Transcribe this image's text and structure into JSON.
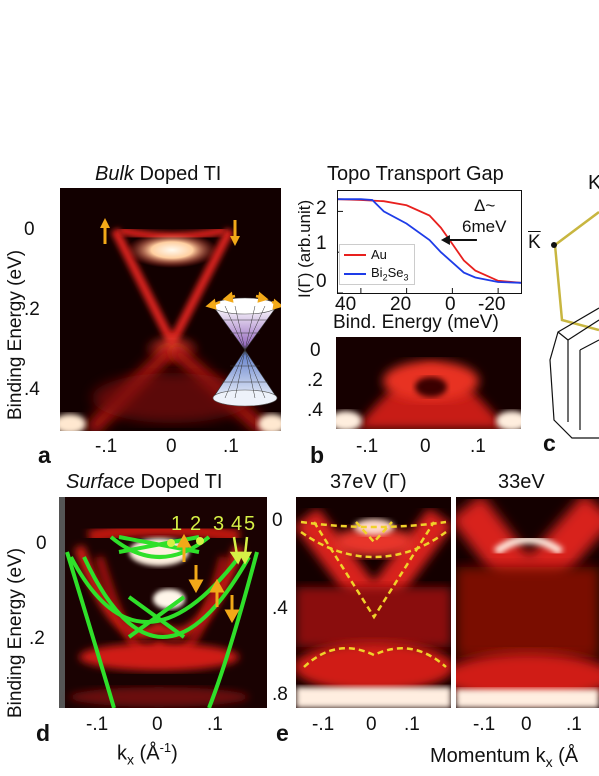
{
  "panel_a": {
    "title_em": "Bulk",
    "title_rest": " Doped TI",
    "ylabel": "Binding Energy (eV)",
    "yticks": [
      "0",
      ".2",
      ".4"
    ],
    "xticks": [
      "-.1",
      "0",
      ".1"
    ],
    "letter": "a"
  },
  "panel_b": {
    "title": "Topo Transport Gap",
    "ylabel": "I(Γ) (arb.unit)",
    "xlabel": "Bind. Energy (meV)",
    "yticks": [
      "2",
      "1",
      "0"
    ],
    "xticks": [
      "40",
      "20",
      "0",
      "-20"
    ],
    "annotation_delta": "Δ~",
    "annotation_value": "6meV",
    "legend_au": "Au",
    "legend_bise": "Bi",
    "legend_sub1": "2",
    "legend_se": "Se",
    "legend_sub2": "3",
    "inset_yticks": [
      "0",
      ".2",
      ".4"
    ],
    "inset_xticks": [
      "-.1",
      "0",
      ".1"
    ],
    "letter": "b"
  },
  "panel_c": {
    "label_k": "K",
    "kbar": "K",
    "letter": "c"
  },
  "panel_d": {
    "title_em": "Surface",
    "title_rest": " Doped TI",
    "ylabel": "Binding Energy (eV)",
    "yticks": [
      "0",
      ".2"
    ],
    "xticks": [
      "-.1",
      "0",
      ".1"
    ],
    "xlabel_k": "k",
    "xlabel_sub": "x",
    "xlabel_unit": " (Å",
    "xlabel_exp": "-1",
    "xlabel_close": ")",
    "band_numbers": [
      "1",
      "2",
      "3",
      "4",
      "5"
    ],
    "letter": "d"
  },
  "panel_e": {
    "title1": "37eV (Γ)",
    "title2": "33eV",
    "yticks": [
      "0",
      ".4",
      ".8"
    ],
    "xticks1": [
      "-.1",
      "0",
      ".1"
    ],
    "xticks2": [
      "-.1",
      "0",
      ".1"
    ],
    "xlabel": "Momentum k",
    "xlabel_sub": "x",
    "xlabel_tail": " (Å",
    "letter": "e"
  },
  "chart_data": {
    "type": "line",
    "title": "Topo Transport Gap",
    "xlabel": "Bind. Energy (meV)",
    "ylabel": "I(Γ) (arb.unit)",
    "xlim": [
      50,
      -30
    ],
    "ylim": [
      0,
      2.5
    ],
    "series": [
      {
        "name": "Au",
        "color": "#e8201e",
        "x": [
          50,
          40,
          30,
          20,
          10,
          5,
          0,
          -5,
          -10,
          -20,
          -30
        ],
        "y": [
          2.3,
          2.28,
          2.25,
          2.15,
          1.9,
          1.6,
          1.2,
          0.8,
          0.55,
          0.3,
          0.25
        ]
      },
      {
        "name": "Bi2Se3",
        "color": "#1e3ce8",
        "x": [
          50,
          40,
          35,
          30,
          20,
          10,
          5,
          0,
          -5,
          -10,
          -20,
          -30
        ],
        "y": [
          2.3,
          2.3,
          2.28,
          2.0,
          1.7,
          1.3,
          1.0,
          0.75,
          0.5,
          0.38,
          0.27,
          0.25
        ]
      }
    ]
  },
  "colors": {
    "arpes_bg": "#120000",
    "arpes_band": "#d8241c",
    "arpes_hot": "#fff4e0",
    "fit_green": "#2fe02a",
    "arrow_orange": "#f2a918",
    "number_yellow": "#d6f046",
    "bz_olive": "#c8b640",
    "dashed_yellow": "#f0d22a"
  }
}
